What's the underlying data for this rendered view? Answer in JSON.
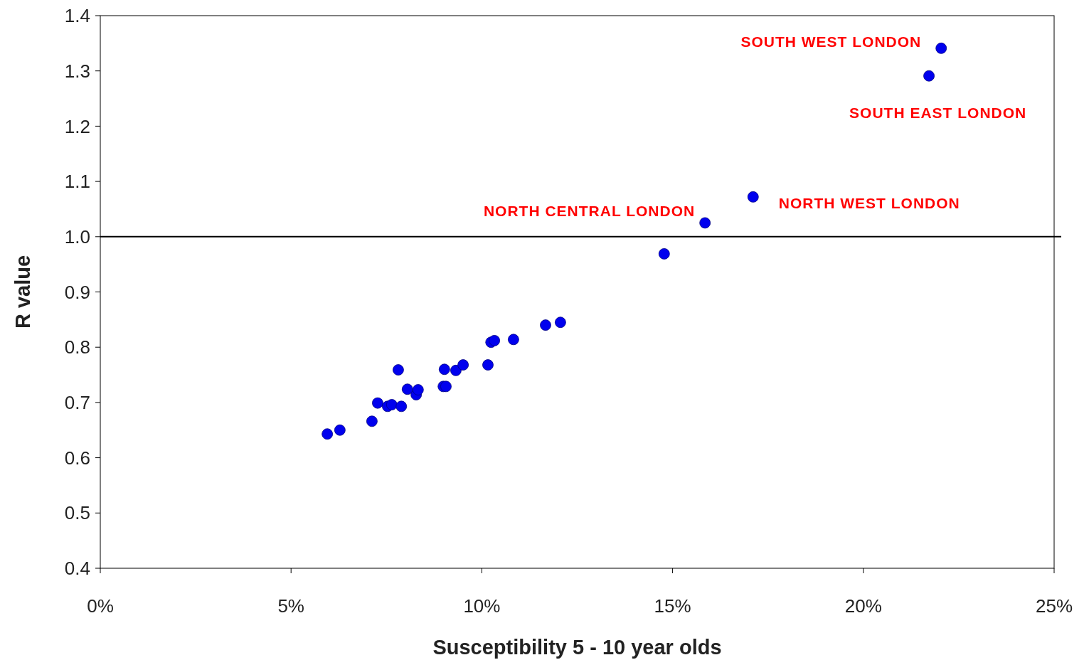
{
  "chart_data": {
    "type": "scatter",
    "xlabel": "Susceptibility 5 - 10 year olds",
    "ylabel": "R value",
    "xlim": [
      0,
      25
    ],
    "xticks": [
      {
        "value": 0,
        "label": "0%"
      },
      {
        "value": 5,
        "label": "5%"
      },
      {
        "value": 10,
        "label": "10%"
      },
      {
        "value": 15,
        "label": "15%"
      },
      {
        "value": 20,
        "label": "20%"
      },
      {
        "value": 25,
        "label": "25%"
      }
    ],
    "ylim": [
      0.4,
      1.4
    ],
    "yticks": [
      {
        "value": 0.4,
        "label": "0.4"
      },
      {
        "value": 0.5,
        "label": "0.5"
      },
      {
        "value": 0.6,
        "label": "0.6"
      },
      {
        "value": 0.7,
        "label": "0.7"
      },
      {
        "value": 0.8,
        "label": "0.8"
      },
      {
        "value": 0.9,
        "label": "0.9"
      },
      {
        "value": 1.0,
        "label": "1.0"
      },
      {
        "value": 1.1,
        "label": "1.1"
      },
      {
        "value": 1.2,
        "label": "1.2"
      },
      {
        "value": 1.3,
        "label": "1.3"
      },
      {
        "value": 1.4,
        "label": "1.4"
      }
    ],
    "grid": false,
    "marker": "circle",
    "series": [
      {
        "color": "#0000ee",
        "x": [
          5.95,
          6.28,
          7.12,
          7.27,
          7.53,
          7.64,
          7.89,
          7.81,
          8.05,
          8.28,
          8.33,
          8.99,
          9.06,
          9.02,
          9.32,
          9.51,
          10.16,
          10.24,
          10.33,
          10.83,
          11.67,
          12.06,
          14.78,
          15.85,
          17.11,
          21.72,
          22.04
        ],
        "values": [
          0.643,
          0.65,
          0.666,
          0.699,
          0.693,
          0.696,
          0.693,
          0.759,
          0.724,
          0.714,
          0.723,
          0.729,
          0.729,
          0.76,
          0.758,
          0.768,
          0.768,
          0.809,
          0.812,
          0.814,
          0.84,
          0.845,
          0.969,
          1.025,
          1.072,
          1.291,
          1.341
        ]
      }
    ],
    "ref_lines": [
      {
        "axis": "y",
        "value": 1.0,
        "color": "#000000"
      }
    ],
    "annotations": [
      {
        "text": "SOUTH WEST LONDON",
        "x": 22.04,
        "y": 1.341
      },
      {
        "text": "SOUTH EAST LONDON",
        "x": 21.72,
        "y": 1.291
      },
      {
        "text": "NORTH CENTRAL LONDON",
        "x": 15.85,
        "y": 1.025
      },
      {
        "text": "NORTH WEST LONDON",
        "x": 17.11,
        "y": 1.072
      }
    ]
  }
}
